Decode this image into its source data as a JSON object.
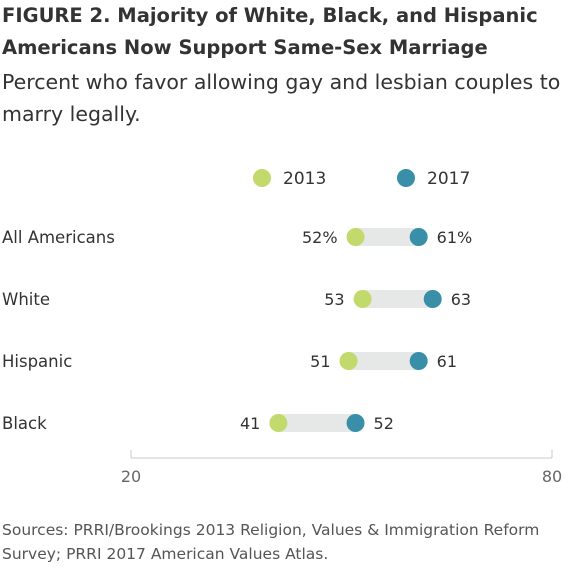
{
  "title": "FIGURE 2.  Majority of White, Black, and Hispanic Americans Now Support Same-Sex Marriage",
  "subtitle": "Percent who favor allowing gay and lesbian couples to marry legally.",
  "source": "Sources: PRRI/Brookings 2013 Religion, Values & Immigration Reform Survey; PRRI 2017 American Values Atlas.",
  "colors": {
    "series_2013": "#c2d96b",
    "series_2017": "#3a8fa8",
    "connector": "#e6e8e7",
    "axis": "#c8c8c8",
    "text": "#333333"
  },
  "chart_data": {
    "type": "dumbbell",
    "legend_position": "top-center",
    "grid": false,
    "xlim": [
      20,
      80
    ],
    "x_ticks": [
      "20",
      "80"
    ],
    "categories": [
      "All Americans",
      "White",
      "Hispanic",
      "Black"
    ],
    "series": [
      {
        "name": "2013",
        "values": [
          52,
          53,
          51,
          41
        ],
        "labels": [
          "52%",
          "53",
          "51",
          "41"
        ]
      },
      {
        "name": "2017",
        "values": [
          61,
          63,
          61,
          52
        ],
        "labels": [
          "61%",
          "63",
          "61",
          "52"
        ]
      }
    ]
  }
}
